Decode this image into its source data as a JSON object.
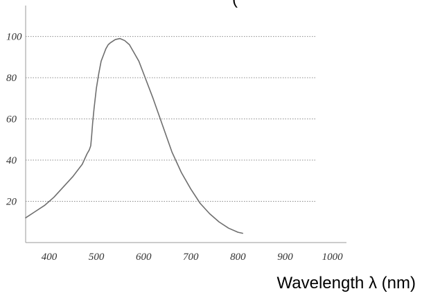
{
  "chart_data": {
    "type": "line",
    "title": "",
    "title_fragment": "(",
    "xlabel": "Wavelength λ (nm)",
    "ylabel": "",
    "x_ticks": [
      400,
      500,
      600,
      700,
      800,
      900,
      1000
    ],
    "y_ticks": [
      20,
      40,
      60,
      80,
      100
    ],
    "xlim": [
      350,
      1030
    ],
    "ylim": [
      0,
      115
    ],
    "grid": "horizontal-dotted",
    "series": [
      {
        "x": [
          350,
          370,
          390,
          410,
          430,
          450,
          470,
          480,
          485,
          488,
          490,
          492,
          495,
          500,
          505,
          510,
          515,
          520,
          525,
          530,
          540,
          550,
          560,
          570,
          580,
          590,
          600,
          620,
          640,
          660,
          680,
          700,
          720,
          740,
          760,
          780,
          800,
          810
        ],
        "y": [
          12,
          15,
          18,
          22,
          27,
          32,
          38,
          43,
          45,
          47,
          52,
          58,
          65,
          75,
          82,
          88,
          91,
          94,
          96,
          97,
          98.5,
          99,
          98,
          96,
          92,
          88,
          82,
          70,
          57,
          44,
          34,
          26,
          19,
          14,
          10,
          7,
          5,
          4.5
        ]
      }
    ],
    "colors": {
      "line": "#6e6e6e",
      "grid": "#8a8a8a",
      "axis": "#9a9a9a"
    }
  }
}
